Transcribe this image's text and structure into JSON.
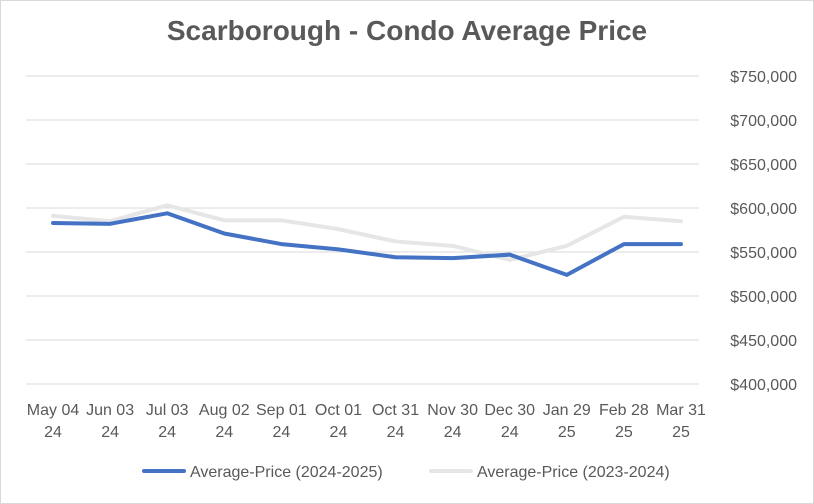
{
  "chart_data": {
    "type": "line",
    "title": "Scarborough - Condo Average Price",
    "categories": [
      [
        "May 04",
        "24"
      ],
      [
        "Jun 03",
        "24"
      ],
      [
        "Jul 03",
        "24"
      ],
      [
        "Aug 02",
        "24"
      ],
      [
        "Sep 01",
        "24"
      ],
      [
        "Oct 01",
        "24"
      ],
      [
        "Oct 31",
        "24"
      ],
      [
        "Nov 30",
        "24"
      ],
      [
        "Dec 30",
        "24"
      ],
      [
        "Jan 29",
        "25"
      ],
      [
        "Feb 28",
        "25"
      ],
      [
        "Mar 31",
        "25"
      ]
    ],
    "yaxis": {
      "position": "right",
      "min": 400000,
      "max": 750000,
      "step": 50000,
      "tick_labels": [
        "$400,000",
        "$450,000",
        "$500,000",
        "$550,000",
        "$600,000",
        "$650,000",
        "$700,000",
        "$750,000"
      ]
    },
    "grid": true,
    "legend_position": "bottom",
    "series": [
      {
        "name": "Average-Price (2024-2025)",
        "color": "#4472c4",
        "values": [
          583000,
          582000,
          594000,
          571000,
          559000,
          553000,
          544000,
          543000,
          547000,
          524000,
          559000,
          559000
        ]
      },
      {
        "name": "Average-Price (2023-2024)",
        "color": "#e7e6e6",
        "values": [
          591000,
          585000,
          603000,
          586000,
          586000,
          576000,
          562000,
          557000,
          541000,
          557000,
          590000,
          585000
        ]
      }
    ]
  }
}
